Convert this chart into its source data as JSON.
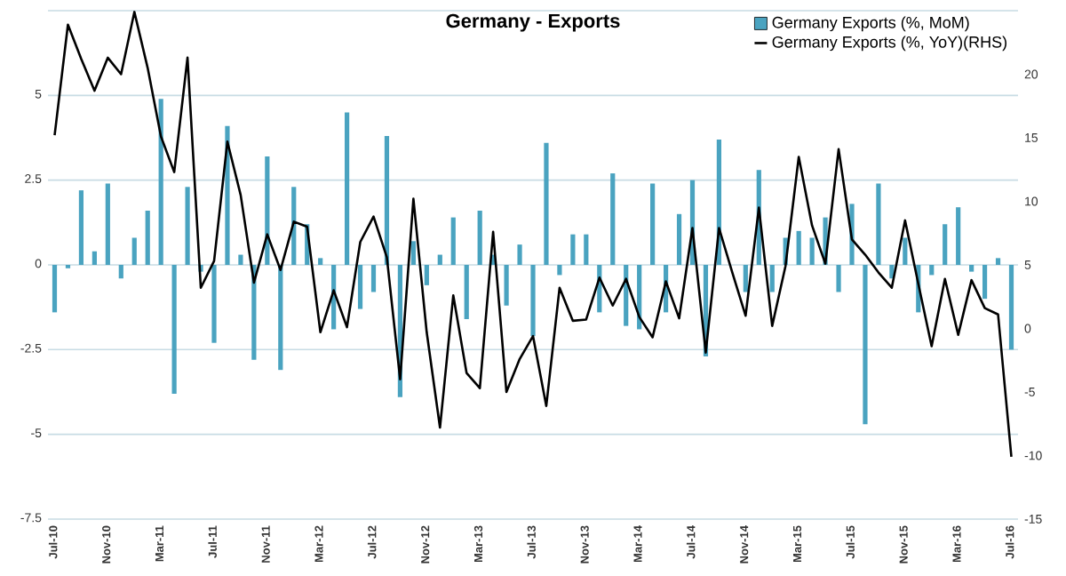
{
  "chart_data": {
    "type": "bar",
    "title": "Germany - Exports",
    "categories": [
      "Jul-10",
      null,
      null,
      null,
      "Nov-10",
      null,
      null,
      null,
      "Mar-11",
      null,
      null,
      null,
      "Jul-11",
      null,
      null,
      null,
      "Nov-11",
      null,
      null,
      null,
      "Mar-12",
      null,
      null,
      null,
      "Jul-12",
      null,
      null,
      null,
      "Nov-12",
      null,
      null,
      null,
      "Mar-13",
      null,
      null,
      null,
      "Jul-13",
      null,
      null,
      null,
      "Nov-13",
      null,
      null,
      null,
      "Mar-14",
      null,
      null,
      null,
      "Jul-14",
      null,
      null,
      null,
      "Nov-14",
      null,
      null,
      null,
      "Mar-15",
      null,
      null,
      null,
      "Jul-15",
      null,
      null,
      null,
      "Nov-15",
      null,
      null,
      null,
      "Mar-16",
      null,
      null,
      null,
      "Jul-16"
    ],
    "series": [
      {
        "name": "Germany Exports (%, MoM)",
        "color": "#4aa3c0",
        "values": [
          -1.4,
          -0.1,
          2.2,
          0.4,
          2.4,
          -0.4,
          0.8,
          1.6,
          4.9,
          -3.8,
          2.3,
          -0.2,
          -2.3,
          4.1,
          0.3,
          -2.8,
          3.2,
          -3.1,
          2.3,
          1.2,
          0.2,
          -1.9,
          4.5,
          -1.3,
          -0.8,
          3.8,
          -3.9,
          0.7,
          -0.6,
          0.3,
          1.4,
          -1.6,
          1.6,
          0.3,
          -1.2,
          0.6,
          -2.1,
          3.6,
          -0.3,
          0.9,
          0.9,
          -1.4,
          2.7,
          -1.8,
          -1.9,
          2.4,
          -1.4,
          1.5,
          2.5,
          -2.7,
          3.7,
          0,
          -0.8,
          2.8,
          -0.8,
          0.8,
          1.0,
          0.8,
          1.4,
          -0.8,
          1.8,
          -4.7,
          2.4,
          -0.4,
          0.8,
          -1.4,
          -0.3,
          1.2,
          1.7,
          -0.2,
          -1.0,
          0.2,
          -2.5
        ]
      },
      {
        "name": "Germany Exports (%, YoY)(RHS)",
        "type": "line",
        "axis": "y2",
        "color": "#000000",
        "values": [
          15.2,
          23.9,
          21.2,
          18.7,
          21.3,
          20.0,
          24.9,
          20.5,
          15.1,
          12.3,
          21.3,
          3.2,
          5.3,
          14.7,
          10.5,
          3.6,
          7.4,
          4.6,
          8.4,
          8.0,
          -0.3,
          3.0,
          0.1,
          6.8,
          8.8,
          5.6,
          -4.0,
          10.2,
          -0.3,
          -7.8,
          2.6,
          -3.5,
          -4.7,
          7.6,
          -5.0,
          -2.4,
          -0.6,
          -6.1,
          3.2,
          0.6,
          0.7,
          4.0,
          1.8,
          3.9,
          0.9,
          -0.7,
          3.7,
          0.8,
          7.9,
          -1.9,
          7.9,
          4.4,
          1.0,
          9.5,
          0.2,
          4.9,
          13.5,
          8.1,
          5.1,
          14.1,
          7.0,
          5.8,
          4.4,
          3.2,
          8.5,
          3.5,
          -1.4,
          3.9,
          -0.5,
          3.8,
          1.6,
          1.1,
          -10.1
        ]
      }
    ],
    "ylim": [
      -7.5,
      7.5
    ],
    "yticks": [
      -7.5,
      -5,
      -2.5,
      0,
      2.5,
      5,
      {
        "value": 7.5,
        "label": null
      }
    ],
    "y2lim": [
      -15,
      25
    ],
    "y2ticks": [
      -15,
      -10,
      -5,
      0,
      5,
      10,
      15,
      20
    ],
    "grid": "y",
    "legend": "top right"
  }
}
